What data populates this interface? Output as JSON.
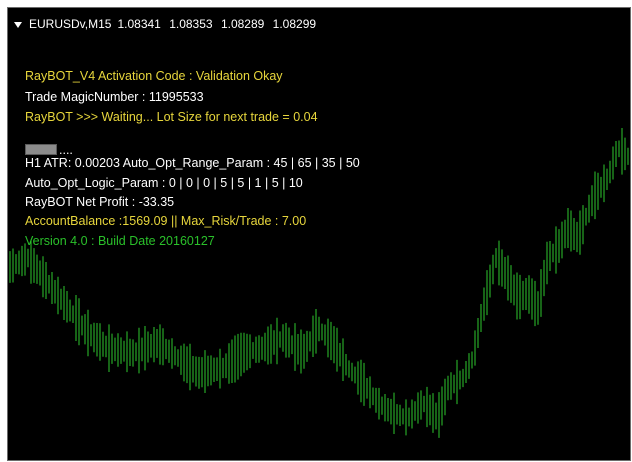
{
  "window": {
    "symbol": "EURUSDv,M15",
    "prices": [
      "1.08341",
      "1.08353",
      "1.08289",
      "1.08299"
    ]
  },
  "info_lines": {
    "activation": "RayBOT_V4 Activation Code : Validation Okay",
    "magic": "Trade MagicNumber : 11995533",
    "waiting": "RayBOT >>> Waiting... Lot Size for next trade = 0.04",
    "progress_dots": "....",
    "atr": "H1 ATR: 0.00203 Auto_Opt_Range_Param : 45 | 65 | 35 | 50",
    "logic": "Auto_Opt_Logic_Param : 0 | 0 | 0 | 5 | 5 | 1 | 5 | 10",
    "net_profit": "RayBOT Net Profit : -33.35",
    "balance": "AccountBalance :1569.09 || Max_Risk/Trade : 7.00",
    "version": "Version 4.0 : Build Date 20160127"
  },
  "colors": {
    "background": "#000000",
    "candles": "#2ec82e",
    "yellow_text": "#e7d63c",
    "white_text": "#ffffff",
    "green_text": "#2ac02a"
  }
}
